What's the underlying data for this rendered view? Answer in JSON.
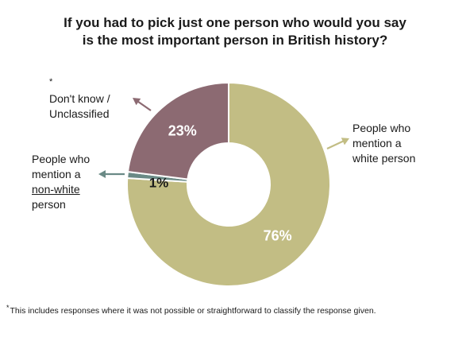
{
  "title": {
    "line1": "If you had to pick just one person who would you say",
    "line2": "is the most important person in British history?"
  },
  "chart_data": {
    "type": "pie",
    "title": "If you had to pick just one person who would you say is the most important person in British history?",
    "donut": true,
    "slices": [
      {
        "label": "People who mention a white person",
        "value": 76,
        "display": "76%",
        "color": "#c2bd84",
        "text_color": "#ffffff"
      },
      {
        "label": "People who mention a non-white person",
        "value": 1,
        "display": "1%",
        "color": "#6a8a86",
        "text_color": "#1a1a1a"
      },
      {
        "label": "Don't know / Unclassified",
        "value": 23,
        "display": "23%",
        "color": "#8c6a72",
        "text_color": "#ffffff"
      }
    ]
  },
  "labels": {
    "white": {
      "line1": "People who",
      "line2": "mention a",
      "line3": "white person"
    },
    "nonwhite": {
      "line1": "People who",
      "line2": "mention a",
      "line3": "non-white",
      "line4": "person"
    },
    "dontknow": {
      "star": "*",
      "line1": "Don't know /",
      "line2": "Unclassified"
    }
  },
  "footnote": {
    "star": "*",
    "text": "This includes responses where it was not possible or straightforward to classify the response given."
  },
  "colors": {
    "white_slice": "#c2bd84",
    "nonwhite_slice": "#6a8a86",
    "dontknow_slice": "#8c6a72",
    "arrow_white": "#c2bd84",
    "arrow_nonwhite": "#6a8a86",
    "arrow_dontknow": "#8c6a72"
  }
}
